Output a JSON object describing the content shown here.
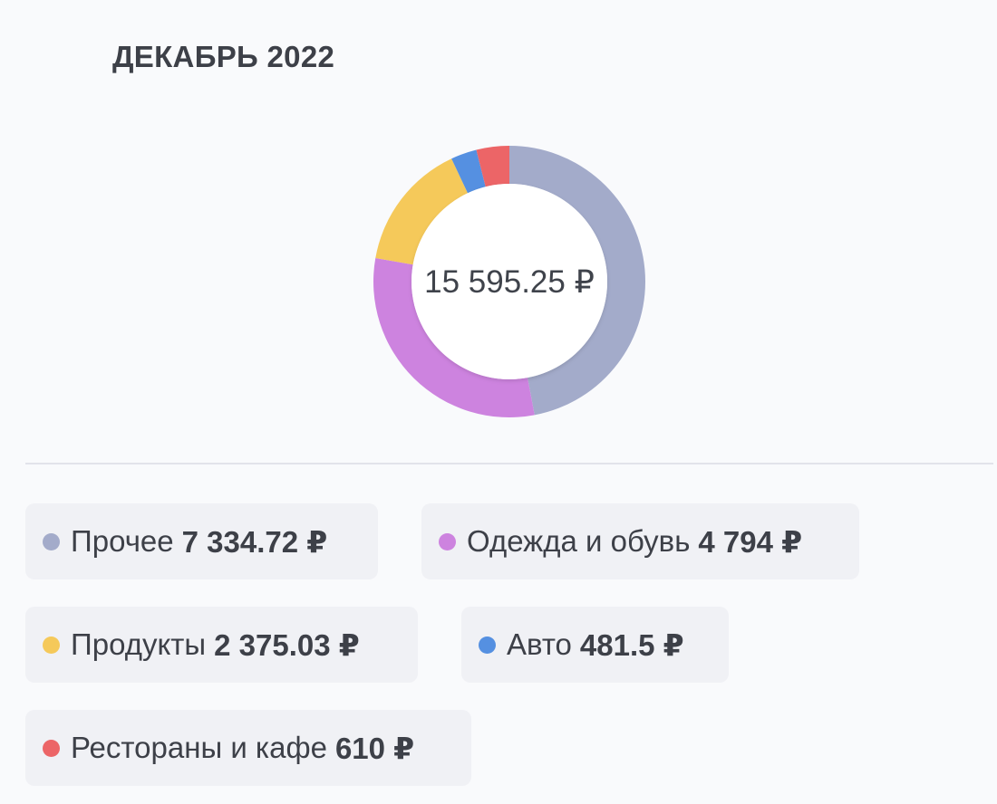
{
  "header": {
    "title": "ДЕКАБРЬ 2022"
  },
  "chart_data": {
    "type": "pie",
    "variant": "donut",
    "center_label": "15 595.25 ₽",
    "total": 15595.25,
    "currency": "₽",
    "categories": [
      "Прочее",
      "Одежда и обувь",
      "Продукты",
      "Авто",
      "Рестораны и кафе"
    ],
    "values": [
      7334.72,
      4794,
      2375.03,
      481.5,
      610
    ],
    "value_labels": [
      "7 334.72 ₽",
      "4 794 ₽",
      "2 375.03 ₽",
      "481.5 ₽",
      "610 ₽"
    ],
    "colors": [
      "#a3abca",
      "#cd83df",
      "#f5c95a",
      "#5590e1",
      "#ec6567"
    ],
    "start_angle_deg": 0,
    "direction": "clockwise",
    "legend_position": "bottom"
  },
  "legend": [
    {
      "label": "Прочее",
      "value": "7 334.72 ₽",
      "color": "#a3abca"
    },
    {
      "label": "Одежда и обувь",
      "value": "4 794 ₽",
      "color": "#cd83df"
    },
    {
      "label": "Продукты",
      "value": "2 375.03 ₽",
      "color": "#f5c95a"
    },
    {
      "label": "Авто",
      "value": "481.5 ₽",
      "color": "#5590e1"
    },
    {
      "label": "Рестораны и кафе",
      "value": "610 ₽",
      "color": "#ec6567"
    }
  ]
}
